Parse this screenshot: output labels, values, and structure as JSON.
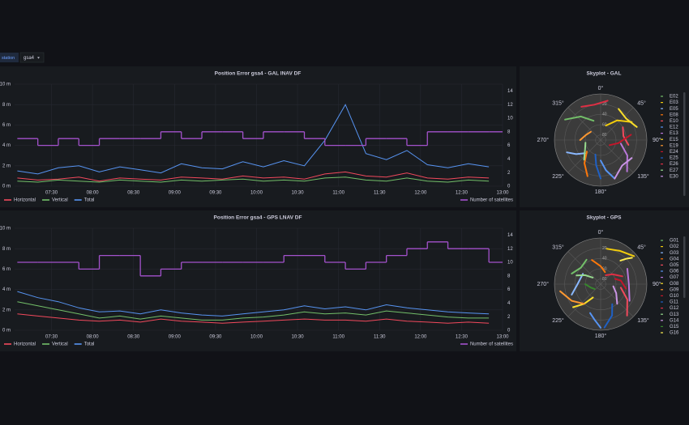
{
  "variable": {
    "label": "station",
    "value": "gsa4"
  },
  "chart_data": [
    {
      "type": "timeseries",
      "title": "Position Error gsa4 - GAL INAV DF",
      "x": [
        "07:05",
        "07:20",
        "07:35",
        "07:50",
        "08:05",
        "08:20",
        "08:35",
        "08:50",
        "09:05",
        "09:20",
        "09:35",
        "09:50",
        "10:05",
        "10:20",
        "10:35",
        "10:50",
        "11:05",
        "11:20",
        "11:35",
        "11:50",
        "12:05",
        "12:20",
        "12:35",
        "12:50"
      ],
      "xlim": [
        "07:03",
        "13:00"
      ],
      "xticks": [
        "07:30",
        "08:00",
        "08:30",
        "09:00",
        "09:30",
        "10:00",
        "10:30",
        "11:00",
        "11:30",
        "12:00",
        "12:30",
        "13:00"
      ],
      "ylim": [
        0,
        10
      ],
      "yticks": [
        {
          "value": 0,
          "label": "0 m"
        },
        {
          "value": 2,
          "label": "2 m"
        },
        {
          "value": 4,
          "label": "4 m"
        },
        {
          "value": 6,
          "label": "6 m"
        },
        {
          "value": 8,
          "label": "8 m"
        },
        {
          "value": 10,
          "label": "10 m"
        }
      ],
      "y2lim": [
        0,
        15
      ],
      "y2ticks": [
        0,
        2,
        4,
        6,
        8,
        10,
        12,
        14
      ],
      "grid": true,
      "series": [
        {
          "name": "Horizontal",
          "color": "#f2495c",
          "values": [
            0.8,
            0.6,
            0.7,
            0.9,
            0.5,
            0.8,
            0.7,
            0.6,
            0.9,
            0.8,
            0.7,
            1.0,
            0.8,
            0.9,
            0.7,
            1.2,
            1.4,
            1.0,
            0.9,
            1.3,
            0.8,
            0.7,
            0.9,
            0.8
          ]
        },
        {
          "name": "Vertical",
          "color": "#73bf69",
          "values": [
            0.5,
            0.4,
            0.6,
            0.5,
            0.4,
            0.6,
            0.5,
            0.4,
            0.6,
            0.5,
            0.6,
            0.7,
            0.5,
            0.6,
            0.5,
            0.8,
            0.9,
            0.6,
            0.5,
            0.8,
            0.5,
            0.4,
            0.6,
            0.5
          ]
        },
        {
          "name": "Total",
          "color": "#5794f2",
          "values": [
            1.5,
            1.2,
            1.8,
            2.0,
            1.4,
            1.9,
            1.6,
            1.3,
            2.2,
            1.8,
            1.7,
            2.4,
            1.9,
            2.5,
            2.0,
            4.5,
            8.0,
            3.2,
            2.6,
            3.5,
            2.1,
            1.8,
            2.2,
            1.9
          ]
        },
        {
          "name": "Number of satellites",
          "color": "#a352cc",
          "axis": "y2",
          "values": [
            7,
            6,
            7,
            6,
            7,
            7,
            7,
            8,
            7,
            8,
            8,
            7,
            8,
            8,
            7,
            6,
            6,
            7,
            7,
            6,
            8,
            8,
            8,
            8
          ]
        }
      ]
    },
    {
      "type": "skyplot",
      "title": "Skyplot - GAL",
      "rlim": [
        90,
        0
      ],
      "rticks": [
        20,
        40,
        60,
        80
      ],
      "angleticks": [
        {
          "value": 0,
          "label": "0°"
        },
        {
          "value": 45,
          "label": "45°"
        },
        {
          "value": 90,
          "label": "90°"
        },
        {
          "value": 135,
          "label": "135°"
        },
        {
          "value": 180,
          "label": "180°"
        },
        {
          "value": 225,
          "label": "225°"
        },
        {
          "value": 270,
          "label": "270°"
        },
        {
          "value": 315,
          "label": "315°"
        }
      ],
      "series": [
        {
          "name": "E02",
          "color": "#73bf69",
          "az": [
            300,
            320,
            340
          ],
          "el": [
            10,
            30,
            50
          ]
        },
        {
          "name": "E03",
          "color": "#f2cc0c",
          "az": [
            20,
            40,
            60
          ],
          "el": [
            60,
            40,
            20
          ]
        },
        {
          "name": "E05",
          "color": "#8ab8ff",
          "az": [
            250,
            240,
            230
          ],
          "el": [
            20,
            35,
            50
          ]
        },
        {
          "name": "E08",
          "color": "#ff780a",
          "az": [
            200,
            215,
            230
          ],
          "el": [
            15,
            35,
            55
          ]
        },
        {
          "name": "E10",
          "color": "#f2495c",
          "az": [
            60,
            80,
            100
          ],
          "el": [
            40,
            45,
            35
          ]
        },
        {
          "name": "E12",
          "color": "#5794f2",
          "az": [
            160,
            170,
            180
          ],
          "el": [
            10,
            30,
            50
          ]
        },
        {
          "name": "E13",
          "color": "#b877d9",
          "az": [
            100,
            120,
            140
          ],
          "el": [
            50,
            30,
            10
          ]
        },
        {
          "name": "E15",
          "color": "#fade2a",
          "az": [
            30,
            50,
            70
          ],
          "el": [
            20,
            25,
            15
          ]
        },
        {
          "name": "E19",
          "color": "#ff9830",
          "az": [
            270,
            290,
            310
          ],
          "el": [
            50,
            60,
            65
          ]
        },
        {
          "name": "E24",
          "color": "#c4162a",
          "az": [
            120,
            100,
            80
          ],
          "el": [
            70,
            55,
            30
          ]
        },
        {
          "name": "E25",
          "color": "#1f60c4",
          "az": [
            180,
            190,
            200
          ],
          "el": [
            15,
            40,
            60
          ]
        },
        {
          "name": "E26",
          "color": "#e02f44",
          "az": [
            330,
            350,
            10
          ],
          "el": [
            15,
            20,
            12
          ]
        },
        {
          "name": "E27",
          "color": "#96d98d",
          "az": [
            220,
            240,
            260
          ],
          "el": [
            40,
            55,
            60
          ]
        },
        {
          "name": "E30",
          "color": "#ca95e5",
          "az": [
            120,
            140,
            160
          ],
          "el": [
            20,
            25,
            10
          ]
        }
      ]
    },
    {
      "type": "timeseries",
      "title": "Position Error gsa4 - GPS LNAV DF",
      "x": [
        "07:05",
        "07:20",
        "07:35",
        "07:50",
        "08:05",
        "08:20",
        "08:35",
        "08:50",
        "09:05",
        "09:20",
        "09:35",
        "09:50",
        "10:05",
        "10:20",
        "10:35",
        "10:50",
        "11:05",
        "11:20",
        "11:35",
        "11:50",
        "12:05",
        "12:20",
        "12:35",
        "12:50"
      ],
      "xlim": [
        "07:03",
        "13:00"
      ],
      "xticks": [
        "07:30",
        "08:00",
        "08:30",
        "09:00",
        "09:30",
        "10:00",
        "10:30",
        "11:00",
        "11:30",
        "12:00",
        "12:30",
        "13:00"
      ],
      "ylim": [
        0,
        10
      ],
      "yticks": [
        {
          "value": 0,
          "label": "0 m"
        },
        {
          "value": 2,
          "label": "2 m"
        },
        {
          "value": 4,
          "label": "4 m"
        },
        {
          "value": 6,
          "label": "6 m"
        },
        {
          "value": 8,
          "label": "8 m"
        },
        {
          "value": 10,
          "label": "10 m"
        }
      ],
      "y2lim": [
        0,
        15
      ],
      "y2ticks": [
        0,
        2,
        4,
        6,
        8,
        10,
        12,
        14
      ],
      "grid": true,
      "series": [
        {
          "name": "Horizontal",
          "color": "#f2495c",
          "values": [
            1.6,
            1.4,
            1.2,
            1.0,
            0.9,
            1.0,
            0.8,
            1.1,
            0.9,
            0.8,
            0.7,
            0.8,
            0.9,
            1.0,
            1.1,
            1.0,
            1.0,
            0.9,
            1.1,
            0.9,
            0.8,
            0.7,
            0.8,
            0.7
          ]
        },
        {
          "name": "Vertical",
          "color": "#73bf69",
          "values": [
            2.8,
            2.4,
            2.0,
            1.6,
            1.2,
            1.4,
            1.1,
            1.4,
            1.2,
            1.0,
            1.0,
            1.2,
            1.3,
            1.5,
            1.8,
            1.6,
            1.7,
            1.5,
            1.9,
            1.7,
            1.5,
            1.3,
            1.2,
            1.2
          ]
        },
        {
          "name": "Total",
          "color": "#5794f2",
          "values": [
            3.8,
            3.2,
            2.8,
            2.2,
            1.8,
            1.9,
            1.6,
            2.0,
            1.7,
            1.5,
            1.4,
            1.6,
            1.8,
            2.0,
            2.4,
            2.1,
            2.3,
            2.0,
            2.5,
            2.2,
            2.0,
            1.8,
            1.7,
            1.6
          ]
        },
        {
          "name": "Number of satellites",
          "color": "#a352cc",
          "axis": "y2",
          "values": [
            10,
            10,
            10,
            9,
            11,
            11,
            8,
            9,
            10,
            10,
            10,
            10,
            10,
            11,
            11,
            10,
            9,
            10,
            11,
            12,
            13,
            12,
            12,
            10
          ]
        }
      ]
    },
    {
      "type": "skyplot",
      "title": "Skyplot - GPS",
      "rlim": [
        90,
        0
      ],
      "rticks": [
        20,
        40,
        60,
        80
      ],
      "angleticks": [
        {
          "value": 0,
          "label": "0°"
        },
        {
          "value": 45,
          "label": "45°"
        },
        {
          "value": 90,
          "label": "90°"
        },
        {
          "value": 135,
          "label": "135°"
        },
        {
          "value": 180,
          "label": "180°"
        },
        {
          "value": 225,
          "label": "225°"
        },
        {
          "value": 270,
          "label": "270°"
        },
        {
          "value": 315,
          "label": "315°"
        }
      ],
      "series": [
        {
          "name": "G01",
          "color": "#73bf69",
          "az": [
            290,
            310,
            330
          ],
          "el": [
            30,
            40,
            35
          ]
        },
        {
          "name": "G02",
          "color": "#f2cc0c",
          "az": [
            10,
            30,
            50
          ],
          "el": [
            20,
            15,
            5
          ]
        },
        {
          "name": "G03",
          "color": "#8ab8ff",
          "az": [
            250,
            270,
            300
          ],
          "el": [
            30,
            45,
            50
          ]
        },
        {
          "name": "G04",
          "color": "#ff780a",
          "az": [
            340,
            0,
            20
          ],
          "el": [
            40,
            55,
            65
          ]
        },
        {
          "name": "G05",
          "color": "#f2495c",
          "az": [
            140,
            120,
            100
          ],
          "el": [
            10,
            30,
            50
          ]
        },
        {
          "name": "G06",
          "color": "#5794f2",
          "az": [
            200,
            190,
            180
          ],
          "el": [
            30,
            20,
            5
          ]
        },
        {
          "name": "G07",
          "color": "#b877d9",
          "az": [
            60,
            90,
            120
          ],
          "el": [
            30,
            35,
            25
          ]
        },
        {
          "name": "G08",
          "color": "#fade2a",
          "az": [
            210,
            220,
            230
          ],
          "el": [
            60,
            40,
            20
          ]
        },
        {
          "name": "G09",
          "color": "#ff9830",
          "az": [
            260,
            240,
            220
          ],
          "el": [
            10,
            25,
            40
          ]
        },
        {
          "name": "G10",
          "color": "#c4162a",
          "az": [
            70,
            80,
            100
          ],
          "el": [
            60,
            50,
            40
          ]
        },
        {
          "name": "G11",
          "color": "#1f60c4",
          "az": [
            150,
            160,
            175
          ],
          "el": [
            45,
            25,
            5
          ]
        },
        {
          "name": "G12",
          "color": "#e02f44",
          "az": [
            30,
            50,
            70
          ],
          "el": [
            70,
            60,
            45
          ]
        },
        {
          "name": "G13",
          "color": "#96d98d",
          "az": [
            310,
            300,
            290
          ],
          "el": [
            70,
            55,
            40
          ]
        },
        {
          "name": "G14",
          "color": "#ca95e5",
          "az": [
            100,
            120,
            140
          ],
          "el": [
            65,
            55,
            40
          ]
        },
        {
          "name": "G15",
          "color": "#37872d",
          "az": [
            270,
            250,
            230
          ],
          "el": [
            60,
            70,
            75
          ]
        },
        {
          "name": "G16",
          "color": "#ffee52",
          "az": [
            40,
            45,
            50
          ],
          "el": [
            30,
            20,
            10
          ]
        }
      ]
    }
  ]
}
